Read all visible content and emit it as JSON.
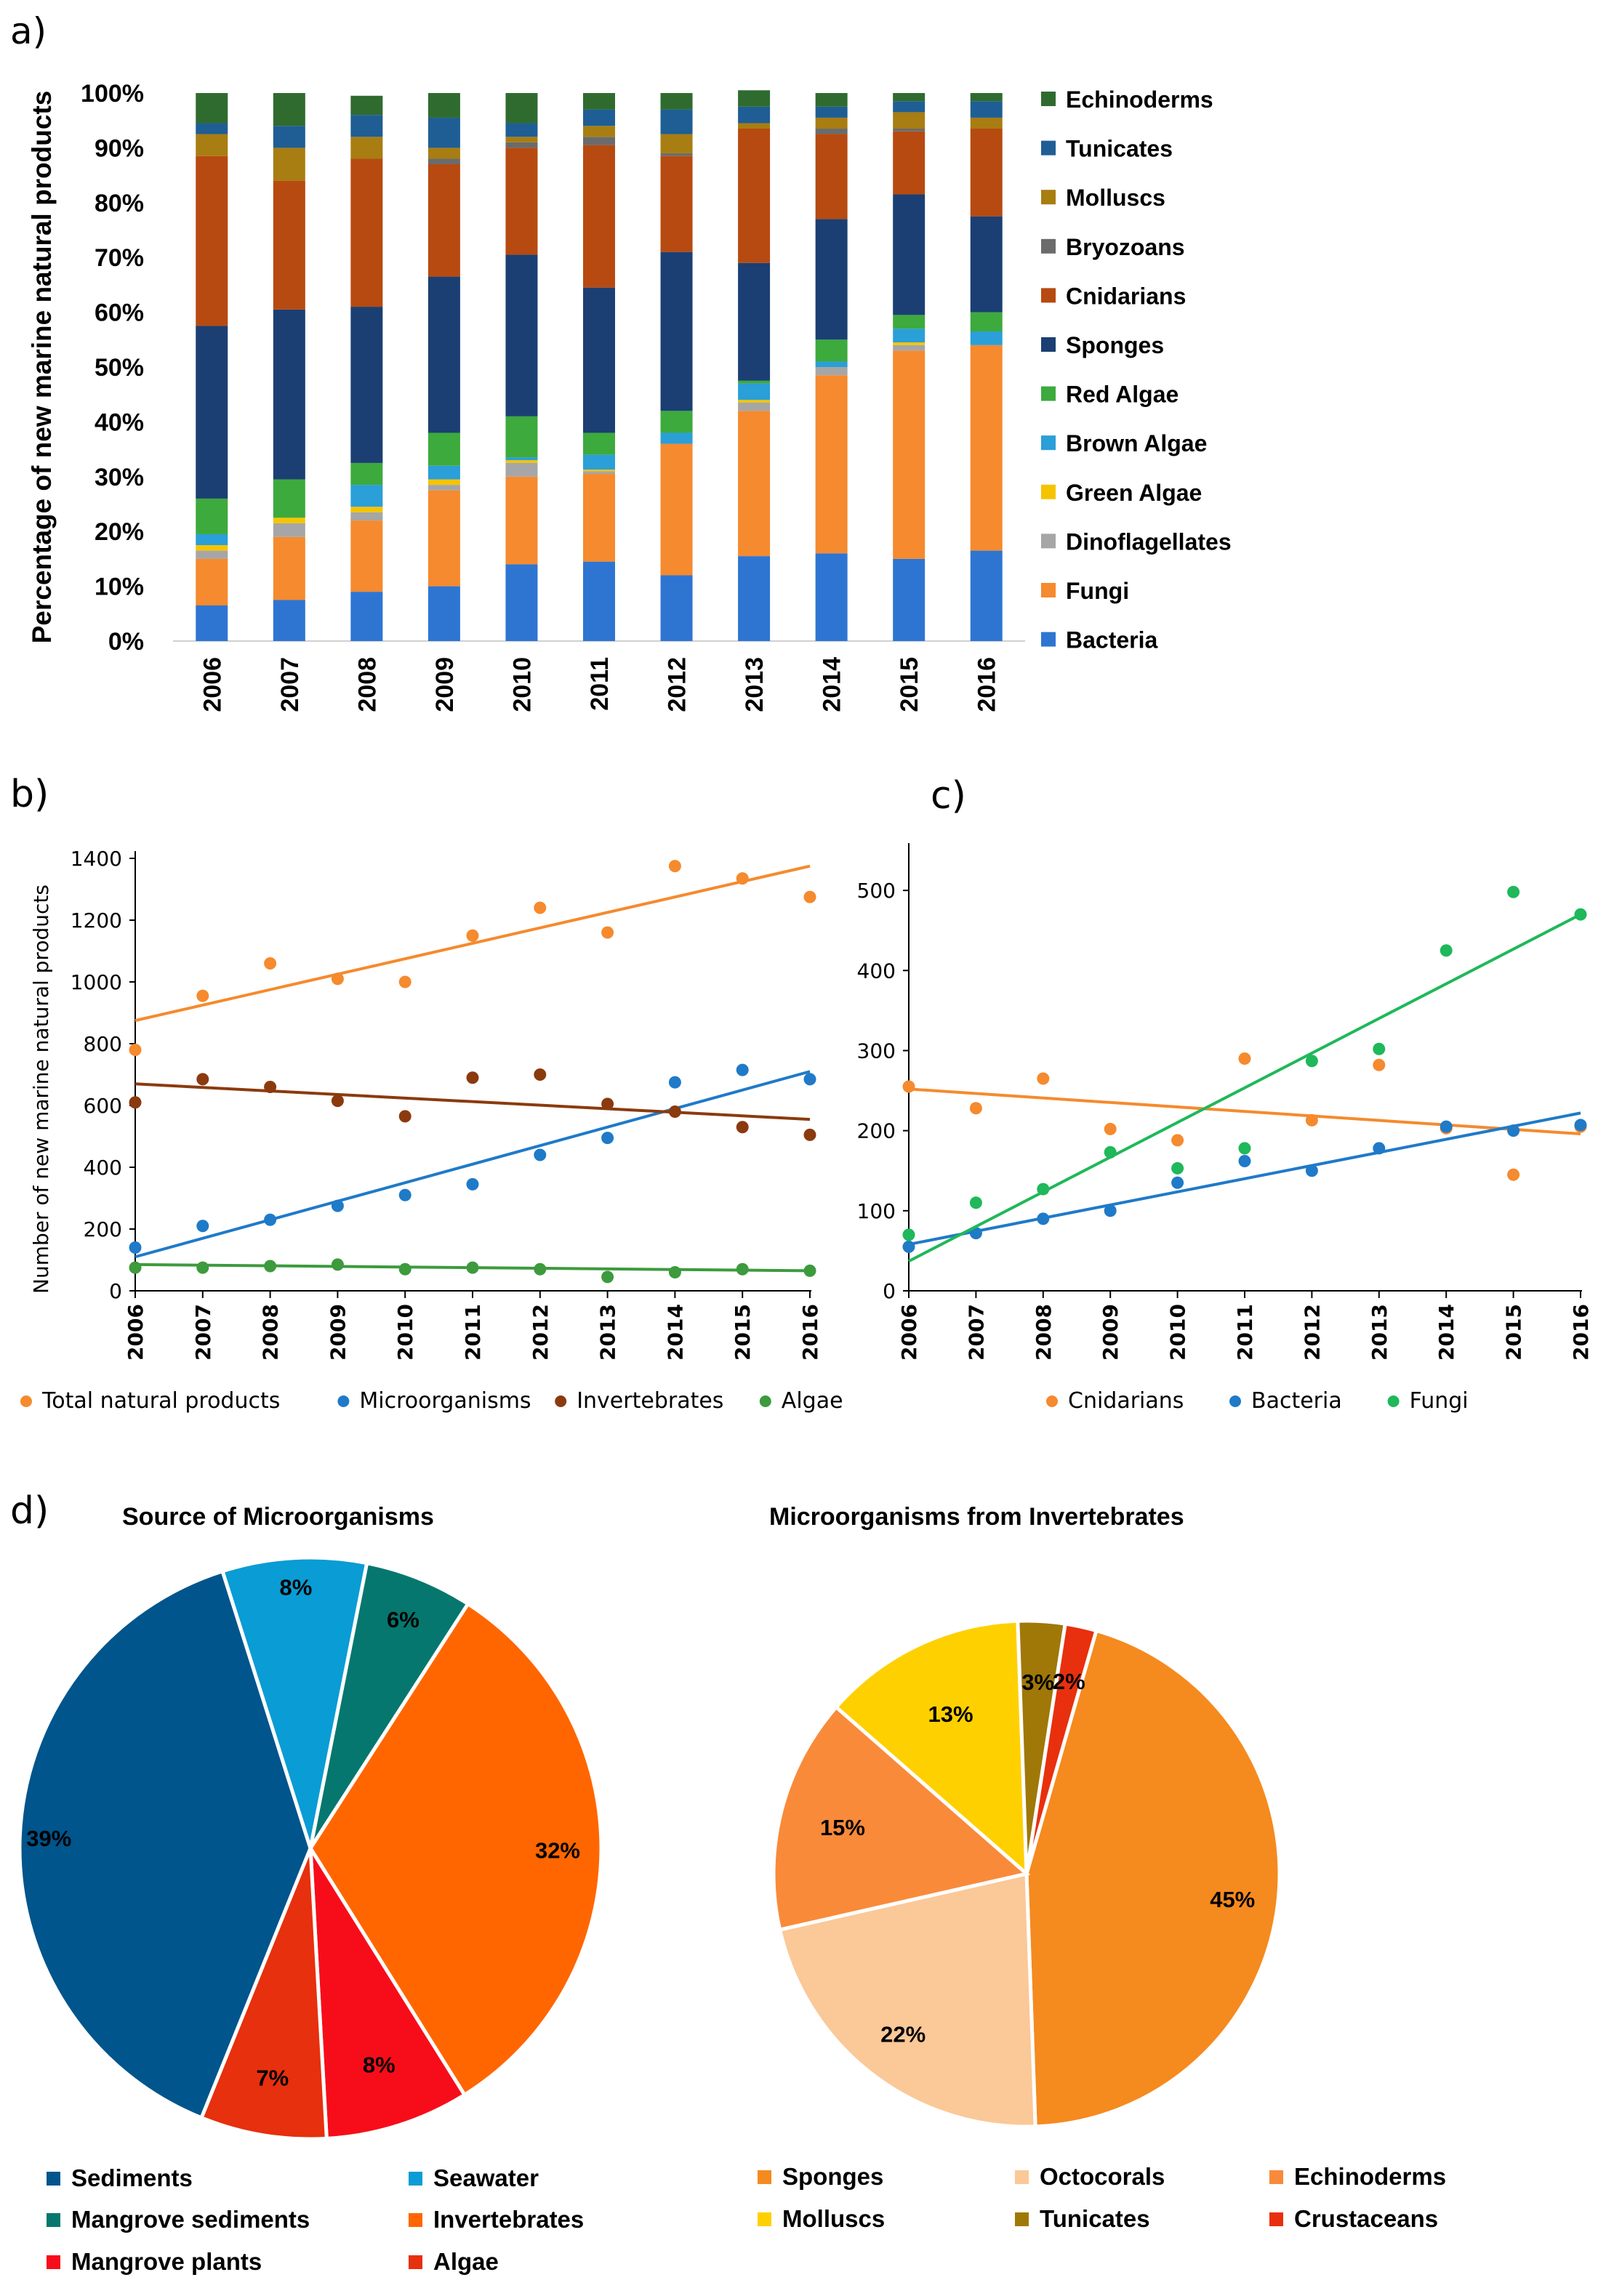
{
  "chart_data": [
    {
      "panel": "a)",
      "type": "bar",
      "stacked": "percent",
      "ylabel": "Percentage of new marine natural products",
      "ylim": [
        0,
        100
      ],
      "yticks": [
        "0%",
        "10%",
        "20%",
        "30%",
        "40%",
        "50%",
        "60%",
        "70%",
        "80%",
        "90%",
        "100%"
      ],
      "categories": [
        "2006",
        "2007",
        "2008",
        "2009",
        "2010",
        "2011",
        "2012",
        "2013",
        "2014",
        "2015",
        "2016"
      ],
      "series": [
        {
          "name": "Bacteria",
          "color": "#2E75D2",
          "values": [
            6.5,
            7.5,
            9,
            10,
            14,
            14.5,
            12,
            15.5,
            16,
            15,
            16.5
          ]
        },
        {
          "name": "Fungi",
          "color": "#F58A2E",
          "values": [
            8.5,
            11.5,
            13,
            17.5,
            16,
            16,
            24,
            26.5,
            32.5,
            38,
            37.5
          ]
        },
        {
          "name": "Dinoflagellates",
          "color": "#A6A6A6",
          "values": [
            1.5,
            2.5,
            1.5,
            1,
            2.5,
            0.5,
            0,
            1.5,
            1.5,
            1,
            0
          ]
        },
        {
          "name": "Green Algae",
          "color": "#F5C400",
          "values": [
            1,
            1,
            1,
            1,
            0.5,
            0.3,
            0,
            0.5,
            0,
            0.5,
            0
          ]
        },
        {
          "name": "Brown Algae",
          "color": "#2A9FD8",
          "values": [
            2,
            0,
            4,
            2.5,
            0.5,
            2.7,
            2,
            3,
            1,
            2.5,
            2.5
          ]
        },
        {
          "name": "Red Algae",
          "color": "#3DAA3D",
          "values": [
            6.5,
            7,
            4,
            6,
            7.5,
            4,
            4,
            0.5,
            4,
            2.5,
            3.5
          ]
        },
        {
          "name": "Sponges",
          "color": "#1B3F73",
          "values": [
            31.5,
            31,
            28.5,
            28.5,
            29.5,
            26.5,
            29,
            21.5,
            22,
            22,
            17.5
          ]
        },
        {
          "name": "Cnidarians",
          "color": "#B74A10",
          "values": [
            31,
            23.5,
            27,
            20.5,
            19.5,
            26,
            17.5,
            24.5,
            15.5,
            11.5,
            16
          ]
        },
        {
          "name": "Bryozoans",
          "color": "#6B6B6B",
          "values": [
            0,
            0,
            0,
            1,
            1,
            1.5,
            0.5,
            0,
            1,
            0.5,
            0
          ]
        },
        {
          "name": "Molluscs",
          "color": "#A87D12",
          "values": [
            4,
            6,
            4,
            2,
            1,
            2,
            3.5,
            1,
            2,
            3,
            2
          ]
        },
        {
          "name": "Tunicates",
          "color": "#1F5E94",
          "values": [
            2,
            4,
            4,
            5.5,
            2.5,
            3,
            4.5,
            3,
            2,
            2,
            3
          ]
        },
        {
          "name": "Echinoderms",
          "color": "#2F6B2F",
          "values": [
            5.5,
            6,
            3.5,
            4.5,
            5.5,
            3,
            3,
            3,
            2.5,
            1.5,
            1.5
          ]
        }
      ]
    },
    {
      "panel": "b)",
      "type": "scatter",
      "ylabel": "Number of new marine natural products",
      "xlim": [
        2006,
        2016
      ],
      "ylim": [
        0,
        1400
      ],
      "x": [
        "2006",
        "2007",
        "2008",
        "2009",
        "2010",
        "2011",
        "2012",
        "2013",
        "2014",
        "2015",
        "2016"
      ],
      "yticks": [
        "0",
        "200",
        "400",
        "600",
        "800",
        "1000",
        "1200",
        "1400"
      ],
      "series": [
        {
          "name": "Total natural products",
          "color": "#F58A2E",
          "values": [
            780,
            955,
            1060,
            1010,
            1000,
            1150,
            1240,
            1160,
            1375,
            1335,
            1275
          ],
          "trend": [
            875,
            1375
          ]
        },
        {
          "name": "Microorganisms",
          "color": "#1F7AC8",
          "values": [
            140,
            210,
            230,
            275,
            310,
            345,
            440,
            495,
            675,
            715,
            685
          ],
          "trend": [
            110,
            710
          ]
        },
        {
          "name": "Invertebrates",
          "color": "#8B3A0E",
          "values": [
            610,
            685,
            660,
            615,
            565,
            690,
            700,
            605,
            580,
            530,
            505
          ],
          "trend": [
            670,
            555
          ]
        },
        {
          "name": "Algae",
          "color": "#3D9A3D",
          "values": [
            75,
            75,
            80,
            85,
            70,
            75,
            70,
            45,
            60,
            70,
            65
          ],
          "trend": [
            85,
            65
          ]
        }
      ]
    },
    {
      "panel": "c)",
      "type": "scatter",
      "xlim": [
        2006,
        2016
      ],
      "ylim": [
        0,
        550
      ],
      "x": [
        "2006",
        "2007",
        "2008",
        "2009",
        "2010",
        "2011",
        "2012",
        "2013",
        "2014",
        "2015",
        "2016"
      ],
      "yticks": [
        "0",
        "100",
        "200",
        "300",
        "400",
        "500"
      ],
      "series": [
        {
          "name": "Cnidarians",
          "color": "#F58A2E",
          "values": [
            255,
            228,
            265,
            202,
            188,
            290,
            213,
            282,
            203,
            145,
            205
          ],
          "trend": [
            252,
            196
          ]
        },
        {
          "name": "Bacteria",
          "color": "#1F7AC8",
          "values": [
            55,
            72,
            90,
            100,
            135,
            162,
            150,
            178,
            205,
            200,
            207
          ],
          "trend": [
            58,
            222
          ]
        },
        {
          "name": "Fungi",
          "color": "#1FB85A",
          "values": [
            70,
            110,
            127,
            173,
            153,
            178,
            287,
            302,
            425,
            498,
            470
          ],
          "trend": [
            37,
            470
          ]
        }
      ]
    },
    {
      "panel": "d)",
      "type": "pie",
      "title": "Source of Microorganisms",
      "slices": [
        {
          "label": "Sediments",
          "value": 39,
          "text": "39%",
          "color": "#00558C"
        },
        {
          "label": "Seawater",
          "value": 8,
          "text": "8%",
          "color": "#0A9CD4"
        },
        {
          "label": "Mangrove sediments",
          "value": 6,
          "text": "6%",
          "color": "#06776E"
        },
        {
          "label": "Invertebrates",
          "value": 32,
          "text": "32%",
          "color": "#FF6600"
        },
        {
          "label": "Mangrove plants",
          "value": 8,
          "text": "8%",
          "color": "#F70D1A"
        },
        {
          "label": "Algae",
          "value": 7,
          "text": "7%",
          "color": "#E6300E"
        }
      ]
    },
    {
      "type": "pie",
      "title": "Microorganisms from Invertebrates",
      "slices": [
        {
          "label": "Sponges",
          "value": 45,
          "text": "45%",
          "color": "#F58A1F"
        },
        {
          "label": "Octocorals",
          "value": 22,
          "text": "22%",
          "color": "#FBC898"
        },
        {
          "label": "Echinoderms",
          "value": 15,
          "text": "15%",
          "color": "#F98A3A"
        },
        {
          "label": "Molluscs",
          "value": 13,
          "text": "13%",
          "color": "#FFD000"
        },
        {
          "label": "Tunicates",
          "value": 3,
          "text": "3%",
          "color": "#A07808"
        },
        {
          "label": "Crustaceans",
          "value": 2,
          "text": "2%",
          "color": "#E8300E"
        }
      ]
    }
  ]
}
